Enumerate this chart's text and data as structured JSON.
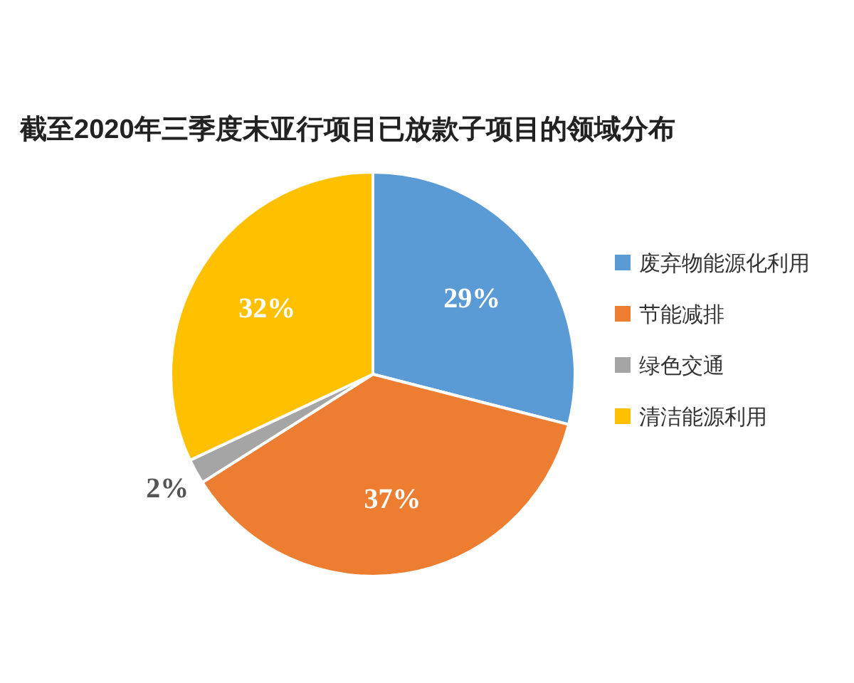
{
  "chart_data": {
    "type": "pie",
    "title": "截至2020年三季度末亚行项目已放款子项目的领域分布",
    "categories": [
      "废弃物能源化利用",
      "节能减排",
      "绿色交通",
      "清洁能源利用"
    ],
    "values": [
      29,
      37,
      2,
      32
    ],
    "colors": [
      "#5b9bd5",
      "#ed7d31",
      "#a5a5a5",
      "#ffc000"
    ],
    "value_labels": [
      "29%",
      "37%",
      "2%",
      "32%"
    ],
    "legend": "right"
  }
}
